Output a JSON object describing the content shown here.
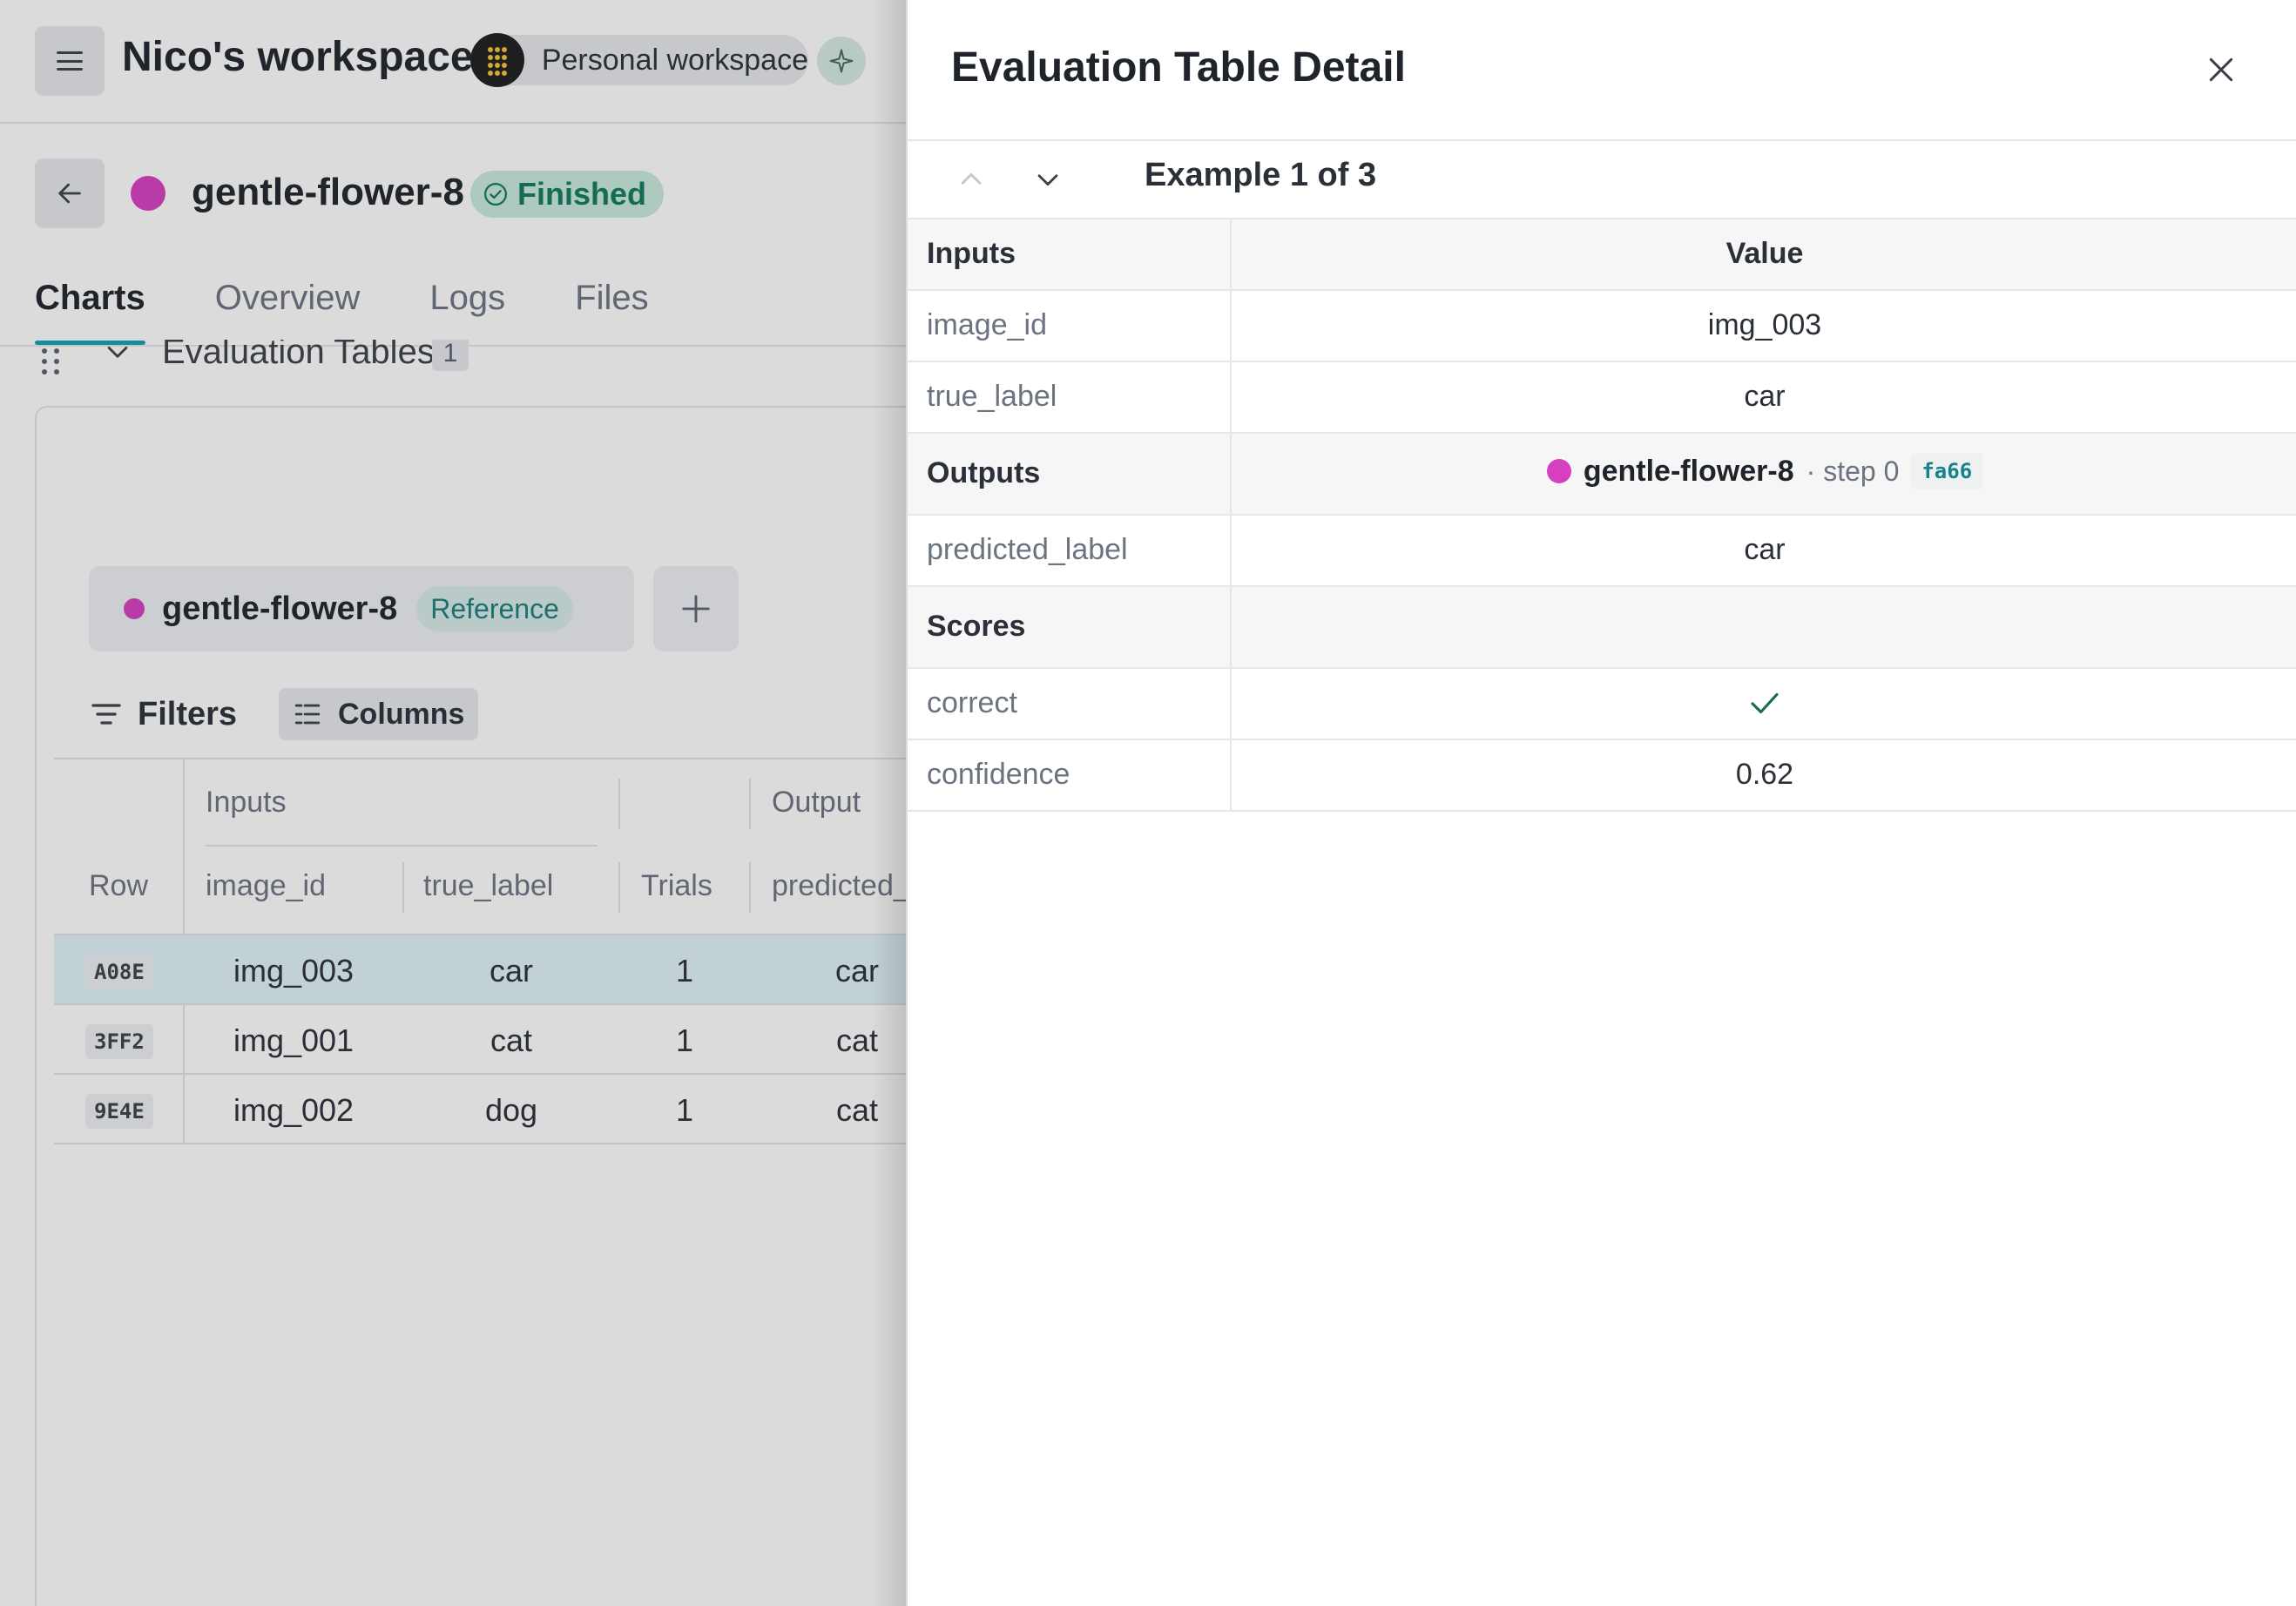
{
  "workspace": {
    "title": "Nico's workspace",
    "pill_label": "Personal workspace"
  },
  "run": {
    "name": "gentle-flower-8",
    "status": "Finished",
    "color": "#d63fc0"
  },
  "tabs": [
    "Charts",
    "Overview",
    "Logs",
    "Files"
  ],
  "active_tab": "Charts",
  "section": {
    "title": "Evaluation Tables",
    "count": "1"
  },
  "reference_chip": {
    "run_name": "gentle-flower-8",
    "badge": "Reference"
  },
  "toolbar": {
    "filters_label": "Filters",
    "columns_label": "Columns"
  },
  "table": {
    "group_headers": {
      "inputs": "Inputs",
      "output": "Output"
    },
    "columns": {
      "row": "Row",
      "image_id": "image_id",
      "true_label": "true_label",
      "trials": "Trials",
      "predicted": "predicted_"
    },
    "rows": [
      {
        "id": "A08E",
        "image_id": "img_003",
        "true_label": "car",
        "trials": "1",
        "predicted": "car",
        "selected": true
      },
      {
        "id": "3FF2",
        "image_id": "img_001",
        "true_label": "cat",
        "trials": "1",
        "predicted": "cat",
        "selected": false
      },
      {
        "id": "9E4E",
        "image_id": "img_002",
        "true_label": "dog",
        "trials": "1",
        "predicted": "cat",
        "selected": false
      }
    ]
  },
  "detail": {
    "title": "Evaluation Table Detail",
    "example_label": "Example 1 of 3",
    "header_key": "Inputs",
    "header_value": "Value",
    "inputs": [
      {
        "key": "image_id",
        "value": "img_003"
      },
      {
        "key": "true_label",
        "value": "car"
      }
    ],
    "outputs_label": "Outputs",
    "outputs_run": {
      "name": "gentle-flower-8",
      "step": "· step 0",
      "hash": "fa66"
    },
    "outputs": [
      {
        "key": "predicted_label",
        "value": "car"
      }
    ],
    "scores_label": "Scores",
    "scores": [
      {
        "key": "correct",
        "value_icon": "check-icon"
      },
      {
        "key": "confidence",
        "value": "0.62"
      }
    ]
  },
  "colors": {
    "accent": "#13a3b0",
    "run": "#d63fc0",
    "success": "#107a5e"
  }
}
